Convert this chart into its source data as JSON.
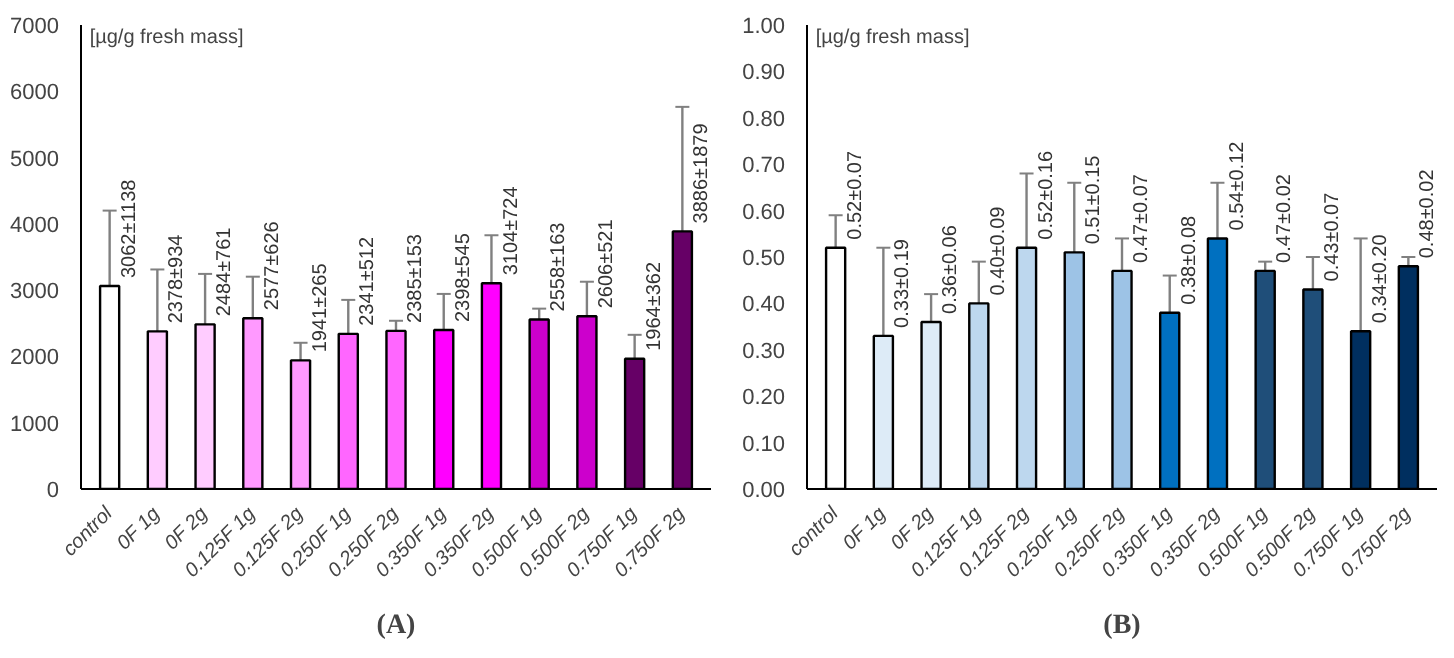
{
  "chart_data": [
    {
      "type": "bar",
      "title": "(A)",
      "ylabel": "[µg/g fresh mass]",
      "categories": [
        "control",
        "0F 1g",
        "0F 2g",
        "0.125F 1g",
        "0.125F 2g",
        "0.250F 1g",
        "0.250F 2g",
        "0.350F 1g",
        "0.350F 2g",
        "0.500F 1g",
        "0.500F 2g",
        "0.750F 1g",
        "0.750F 2g"
      ],
      "values": [
        3062,
        2378,
        2484,
        2577,
        1941,
        2341,
        2385,
        2398,
        3104,
        2558,
        2606,
        1964,
        3886
      ],
      "errors": [
        1138,
        934,
        761,
        626,
        265,
        512,
        153,
        545,
        724,
        163,
        521,
        362,
        1879
      ],
      "value_labels": [
        "3062±1138",
        "2378±934",
        "2484±761",
        "2577±626",
        "1941±265",
        "2341±512",
        "2385±153",
        "2398±545",
        "3104±724",
        "2558±163",
        "2606±521",
        "1964±362",
        "3886±1879"
      ],
      "colors": [
        "#ffffff",
        "#ffccff",
        "#ffccff",
        "#ff99ff",
        "#ff99ff",
        "#ff66ff",
        "#ff66ff",
        "#ff00ff",
        "#ff00ff",
        "#cc00cc",
        "#cc00cc",
        "#660066",
        "#660066"
      ],
      "ylim": [
        0,
        7000
      ],
      "yticks": [
        0,
        1000,
        2000,
        3000,
        4000,
        5000,
        6000,
        7000
      ],
      "grid": false
    },
    {
      "type": "bar",
      "title": "(B)",
      "ylabel": "[µg/g fresh mass]",
      "categories": [
        "control",
        "0F 1g",
        "0F 2g",
        "0.125F 1g",
        "0.125F 2g",
        "0.250F 1g",
        "0.250F 2g",
        "0.350F 1g",
        "0.350F 2g",
        "0.500F 1g",
        "0.500F 2g",
        "0.750F 1g",
        "0.750F 2g"
      ],
      "values": [
        0.52,
        0.33,
        0.36,
        0.4,
        0.52,
        0.51,
        0.47,
        0.38,
        0.54,
        0.47,
        0.43,
        0.34,
        0.48
      ],
      "errors": [
        0.07,
        0.19,
        0.06,
        0.09,
        0.16,
        0.15,
        0.07,
        0.08,
        0.12,
        0.02,
        0.07,
        0.2,
        0.02
      ],
      "value_labels": [
        "0.52±0.07",
        "0.33±0.19",
        "0.36±0.06",
        "0.40±0.09",
        "0.52±0.16",
        "0.51±0.15",
        "0.47±0.07",
        "0.38±0.08",
        "0.54±0.12",
        "0.47±0.02",
        "0.43±0.07",
        "0.34±0.20",
        "0.48±0.02"
      ],
      "colors": [
        "#ffffff",
        "#ddebf7",
        "#ddebf7",
        "#bdd7ee",
        "#bdd7ee",
        "#9dc3e6",
        "#9dc3e6",
        "#0070c0",
        "#0070c0",
        "#1f4e79",
        "#1f4e79",
        "#002f5f",
        "#002f5f"
      ],
      "ylim": [
        0,
        1.0
      ],
      "yticks": [
        {
          "value": 0,
          "label": "0.00"
        },
        {
          "value": 0.1,
          "label": "0.10"
        },
        {
          "value": 0.2,
          "label": "0.20"
        },
        {
          "value": 0.3,
          "label": "0.30"
        },
        {
          "value": 0.4,
          "label": "0.40"
        },
        {
          "value": 0.5,
          "label": "0.50"
        },
        {
          "value": 0.6,
          "label": "0.60"
        },
        {
          "value": 0.7,
          "label": "0.70"
        },
        {
          "value": 0.8,
          "label": "0.80"
        },
        {
          "value": 0.9,
          "label": "0.90"
        },
        {
          "value": 1.0,
          "label": "1.00"
        }
      ],
      "grid": false
    }
  ]
}
